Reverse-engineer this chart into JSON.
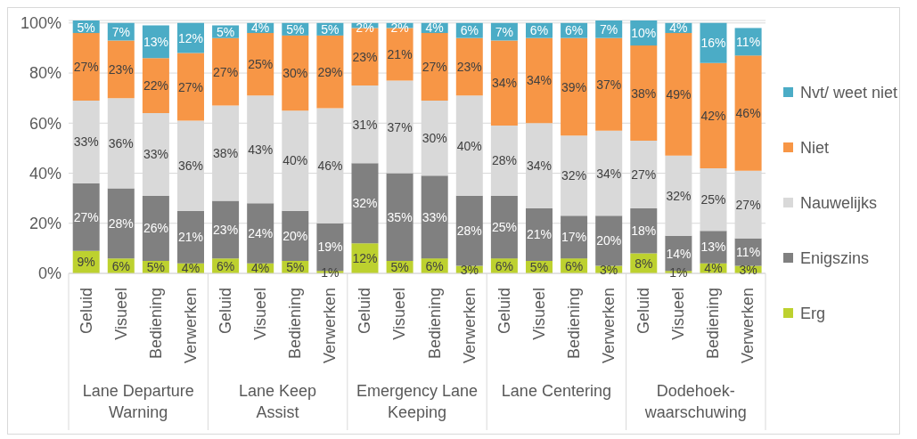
{
  "chart_data": {
    "type": "bar",
    "stacked": true,
    "categories": [
      "Geluid",
      "Visueel",
      "Bediening",
      "Verwerken",
      "Geluid",
      "Visueel",
      "Bediening",
      "Verwerken",
      "Geluid",
      "Visueel",
      "Bediening",
      "Verwerken",
      "Geluid",
      "Visueel",
      "Bediening",
      "Verwerken",
      "Geluid",
      "Visueel",
      "Bediening",
      "Verwerken"
    ],
    "annotations": [
      "Lane Departure Warning",
      "Lane Keep Assist",
      "Emergency Lane Keeping",
      "Lane Centering",
      "Dodehoek-waarschuwing"
    ],
    "series": [
      {
        "name": "Erg",
        "color": "#bdd12f",
        "values": [
          9,
          6,
          5,
          4,
          6,
          4,
          5,
          1,
          12,
          5,
          6,
          3,
          6,
          5,
          6,
          3,
          8,
          1,
          4,
          3
        ],
        "value_labels": [
          "9%",
          "6%",
          "5%",
          "4%",
          "6%",
          "4%",
          "5%",
          "1%",
          "12%",
          "5%",
          "6%",
          "3%",
          "6%",
          "5%",
          "6%",
          "3%",
          "8%",
          "1%",
          "4%",
          "3%"
        ]
      },
      {
        "name": "Enigszins",
        "color": "#808080",
        "values": [
          27,
          28,
          26,
          21,
          23,
          24,
          20,
          19,
          32,
          35,
          33,
          28,
          25,
          21,
          17,
          20,
          18,
          14,
          13,
          11
        ],
        "value_labels": [
          "27%",
          "28%",
          "26%",
          "21%",
          "23%",
          "24%",
          "20%",
          "19%",
          "32%",
          "35%",
          "33%",
          "28%",
          "25%",
          "21%",
          "17%",
          "20%",
          "18%",
          "14%",
          "13%",
          "11%"
        ]
      },
      {
        "name": "Nauwelijks",
        "color": "#d9d9d9",
        "values": [
          33,
          36,
          33,
          36,
          38,
          43,
          40,
          46,
          31,
          37,
          30,
          40,
          28,
          34,
          32,
          34,
          27,
          32,
          25,
          27
        ],
        "value_labels": [
          "33%",
          "36%",
          "33%",
          "36%",
          "38%",
          "43%",
          "40%",
          "46%",
          "31%",
          "37%",
          "30%",
          "40%",
          "28%",
          "34%",
          "32%",
          "34%",
          "27%",
          "32%",
          "25%",
          "27%"
        ]
      },
      {
        "name": "Niet",
        "color": "#f79646",
        "values": [
          27,
          23,
          22,
          27,
          27,
          25,
          30,
          29,
          23,
          21,
          27,
          23,
          34,
          34,
          39,
          37,
          38,
          49,
          42,
          46
        ],
        "value_labels": [
          "27%",
          "23%",
          "22%",
          "27%",
          "27%",
          "25%",
          "30%",
          "29%",
          "23%",
          "21%",
          "27%",
          "23%",
          "34%",
          "34%",
          "39%",
          "37%",
          "38%",
          "49%",
          "42%",
          "46%"
        ]
      },
      {
        "name": "Nvt/ weet niet",
        "color": "#4bacc6",
        "values": [
          5,
          7,
          13,
          12,
          5,
          4,
          5,
          5,
          2,
          2,
          4,
          6,
          7,
          6,
          6,
          7,
          10,
          4,
          16,
          11
        ],
        "value_labels": [
          "5%",
          "7%",
          "13%",
          "12%",
          "5%",
          "4%",
          "5%",
          "5%",
          "2%",
          "2%",
          "4%",
          "6%",
          "7%",
          "6%",
          "6%",
          "7%",
          "10%",
          "4%",
          "16%",
          "11%"
        ]
      }
    ],
    "ylim": [
      0,
      101
    ],
    "yticks": [
      {
        "value": 0,
        "label": "0%"
      },
      {
        "value": 20,
        "label": "20%"
      },
      {
        "value": 40,
        "label": "40%"
      },
      {
        "value": 60,
        "label": "60%"
      },
      {
        "value": 80,
        "label": "80%"
      },
      {
        "value": 100,
        "label": "100%"
      }
    ],
    "grid": "y",
    "legend": "right"
  }
}
